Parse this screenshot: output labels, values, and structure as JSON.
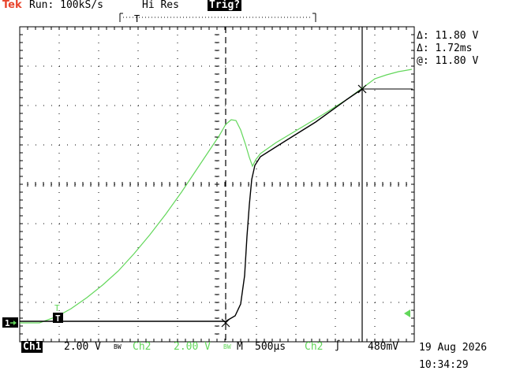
{
  "header": {
    "brand": "Tek",
    "run_status": "Run: 100kS/s",
    "mode": "Hi Res",
    "trigger_state": "Trig?"
  },
  "cursor_readout": {
    "delta_v": "Δ: 11.80 V",
    "delta_t": "Δ: 1.72ms",
    "at_v": "@: 11.80 V"
  },
  "markers": {
    "ground_ch1": "1",
    "trigger_pos": "T"
  },
  "channels": {
    "ch1_label": "Ch1",
    "ch1_scale": "2.00 V",
    "bw": "BW",
    "ch2_label": "Ch2",
    "ch2_scale": "2.00 V",
    "time_label": "M",
    "time_scale": "500µs",
    "trig_source": "Ch2",
    "trig_slope": "∫",
    "trig_level": "480mV"
  },
  "timestamp": {
    "date": "19 Aug 2026",
    "time": "10:34:29"
  },
  "colors": {
    "brand": "#e8452d",
    "ch1_trace": "#000000",
    "ch2_trace": "#62d75a",
    "graticule": "#000000"
  }
}
